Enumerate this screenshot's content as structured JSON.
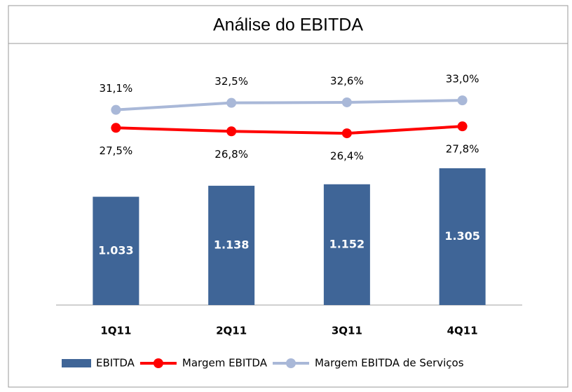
{
  "chart_data": {
    "type": "bar",
    "title": "Análise do EBITDA",
    "categories": [
      "1Q11",
      "2Q11",
      "3Q11",
      "4Q11"
    ],
    "ylim": [
      0,
      2000
    ],
    "y2lim": [
      -8,
      34
    ],
    "series": [
      {
        "name": "EBITDA",
        "type": "bar",
        "color": "#3f6597",
        "values": [
          1033,
          1138,
          1152,
          1305
        ],
        "value_labels": [
          "1.033",
          "1.138",
          "1.152",
          "1.305"
        ]
      },
      {
        "name": "Margem EBITDA",
        "type": "line",
        "axis": "y2",
        "color": "#ff0000",
        "values": [
          27.5,
          26.8,
          26.4,
          27.8
        ],
        "value_labels": [
          "27,5%",
          "26,8%",
          "26,4%",
          "27,8%"
        ]
      },
      {
        "name": "Margem EBITDA de Serviços",
        "type": "line",
        "axis": "y2",
        "color": "#a9b8d8",
        "values": [
          31.1,
          32.5,
          32.6,
          33.0
        ],
        "value_labels": [
          "31,1%",
          "32,5%",
          "32,6%",
          "33,0%"
        ]
      }
    ]
  }
}
